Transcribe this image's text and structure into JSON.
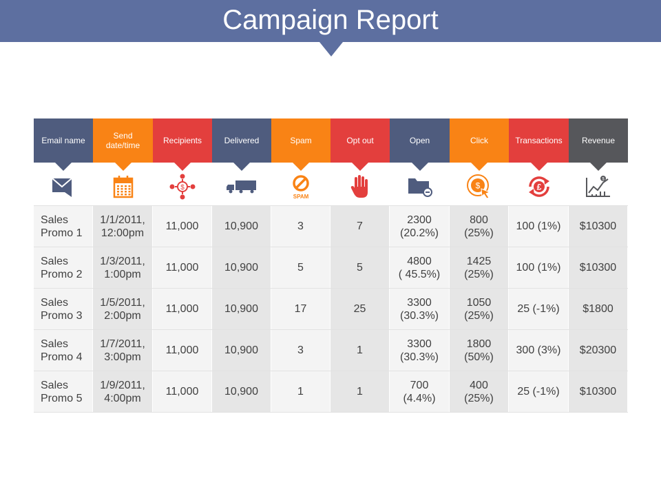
{
  "title": "Campaign Report",
  "columns": [
    {
      "label": "Email name",
      "color": "#4f5c7e",
      "icon": "envelope-icon"
    },
    {
      "label": "Send date/time",
      "color": "#f98315",
      "icon": "calendar-icon"
    },
    {
      "label": "Recipients",
      "color": "#e33f3d",
      "icon": "network-dollar-icon"
    },
    {
      "label": "Delivered",
      "color": "#4f5c7e",
      "icon": "truck-icon"
    },
    {
      "label": "Spam",
      "color": "#f98315",
      "icon": "spam-icon"
    },
    {
      "label": "Opt out",
      "color": "#e33f3d",
      "icon": "hand-stop-icon"
    },
    {
      "label": "Open",
      "color": "#4f5c7e",
      "icon": "folder-minus-icon"
    },
    {
      "label": "Click",
      "color": "#f98315",
      "icon": "dollar-click-icon"
    },
    {
      "label": "Transactions",
      "color": "#e33f3d",
      "icon": "pound-cycle-icon"
    },
    {
      "label": "Revenue",
      "color": "#56575b",
      "icon": "growth-chart-icon"
    }
  ],
  "spam_icon_text": "SPAM",
  "rows": [
    {
      "email_name": "Sales\nPromo 1",
      "send": "1/1/2011,\n12:00pm",
      "recipients": "11,000",
      "delivered": "10,900",
      "spam": "3",
      "opt_out": "7",
      "open": "2300\n(20.2%)",
      "click": "800\n(25%)",
      "transactions": "100 (1%)",
      "revenue": "$10300"
    },
    {
      "email_name": "Sales\nPromo 2",
      "send": "1/3/2011,\n1:00pm",
      "recipients": "11,000",
      "delivered": "10,900",
      "spam": "5",
      "opt_out": "5",
      "open": "4800\n( 45.5%)",
      "click": "1425\n(25%)",
      "transactions": "100 (1%)",
      "revenue": "$10300"
    },
    {
      "email_name": "Sales\nPromo 3",
      "send": "1/5/2011,\n2:00pm",
      "recipients": "11,000",
      "delivered": "10,900",
      "spam": "17",
      "opt_out": "25",
      "open": "3300\n(30.3%)",
      "click": "1050\n(25%)",
      "transactions": "25 (-1%)",
      "revenue": "$1800"
    },
    {
      "email_name": "Sales\nPromo 4",
      "send": "1/7/2011,\n3:00pm",
      "recipients": "11,000",
      "delivered": "10,900",
      "spam": "3",
      "opt_out": "1",
      "open": "3300\n(30.3%)",
      "click": "1800\n(50%)",
      "transactions": "300 (3%)",
      "revenue": "$20300"
    },
    {
      "email_name": "Sales\nPromo 5",
      "send": "1/9/2011,\n4:00pm",
      "recipients": "11,000",
      "delivered": "10,900",
      "spam": "1",
      "opt_out": "1",
      "open": "700\n(4.4%)",
      "click": "400\n(25%)",
      "transactions": "25 (-1%)",
      "revenue": "$10300"
    }
  ]
}
